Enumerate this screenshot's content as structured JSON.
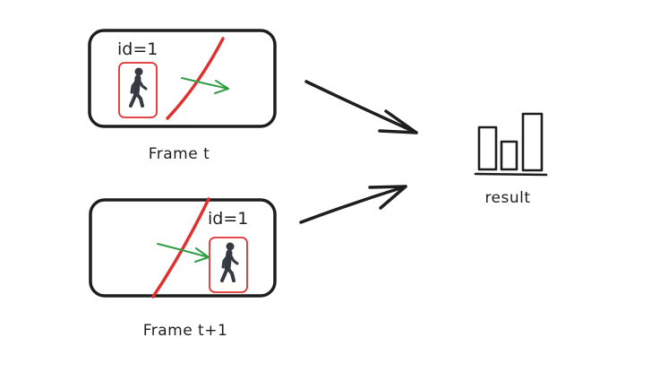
{
  "frames": [
    {
      "caption": "Frame t",
      "id_label": "id=1",
      "icon": "pedestrian-walking-icon"
    },
    {
      "caption": "Frame t+1",
      "id_label": "id=1",
      "icon": "pedestrian-walking-icon"
    }
  ],
  "result": {
    "label": "result",
    "icon": "bar-chart-icon"
  },
  "colors": {
    "stroke": "#1e1e1e",
    "counting_line": "#e03131",
    "motion_arrow": "#2f9e44",
    "detection_box": "#e03131",
    "pedestrian": "#343a40"
  }
}
